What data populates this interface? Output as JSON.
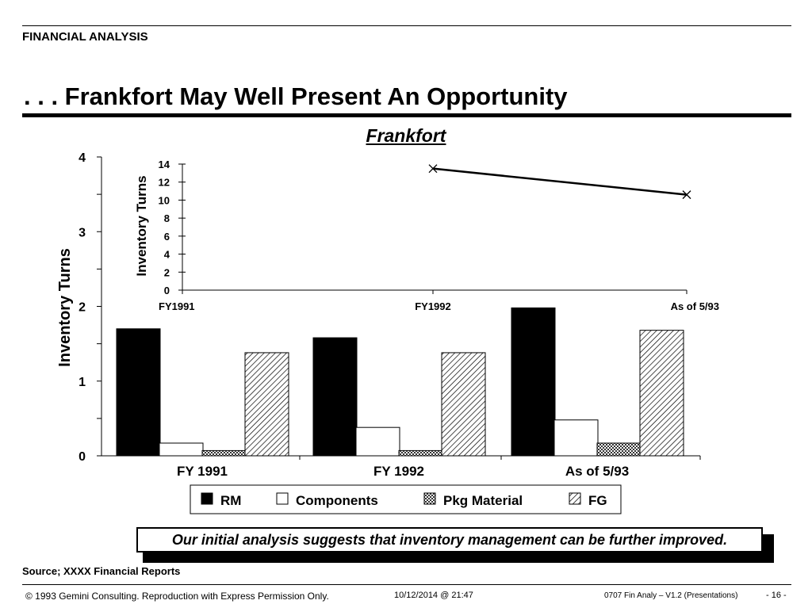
{
  "header": {
    "section_label": "FINANCIAL ANALYSIS",
    "title": ". . . Frankfort May Well Present An Opportunity"
  },
  "chart_data": [
    {
      "type": "bar",
      "title": "Frankfort",
      "ylabel": "Inventory Turns",
      "ylim": [
        0,
        4
      ],
      "yticks": [
        "0",
        "1",
        "2",
        "3",
        "4"
      ],
      "categories": [
        "FY 1991",
        "FY 1992",
        "As of 5/93"
      ],
      "series": [
        {
          "name": "RM",
          "values": [
            1.7,
            1.58,
            1.98
          ],
          "fill": "black"
        },
        {
          "name": "Components",
          "values": [
            0.17,
            0.38,
            0.48
          ],
          "fill": "white"
        },
        {
          "name": "Pkg Material",
          "values": [
            0.07,
            0.07,
            0.17
          ],
          "fill": "checker"
        },
        {
          "name": "FG",
          "values": [
            1.38,
            1.38,
            1.68
          ],
          "fill": "hatch"
        }
      ],
      "legend_position": "bottom"
    },
    {
      "type": "line",
      "ylabel": "Inventory Turns",
      "ylim": [
        0,
        14
      ],
      "yticks": [
        "0",
        "2",
        "4",
        "6",
        "8",
        "10",
        "12",
        "14"
      ],
      "categories": [
        "FY1991",
        "FY1992",
        "As of 5/93"
      ],
      "series": [
        {
          "values": [
            null,
            13.5,
            10.6
          ]
        }
      ],
      "legend_position": "none"
    }
  ],
  "callout": "Our initial analysis suggests that inventory management can be further improved.",
  "source": "Source; XXXX Financial Reports",
  "footer": {
    "copyright": "© 1993 Gemini Consulting. Reproduction with Express Permission Only.",
    "date": "10/12/2014 @ 21:47",
    "file": "0707 Fin Analy – V1.2 (Presentations)",
    "page": "- 16 -"
  }
}
